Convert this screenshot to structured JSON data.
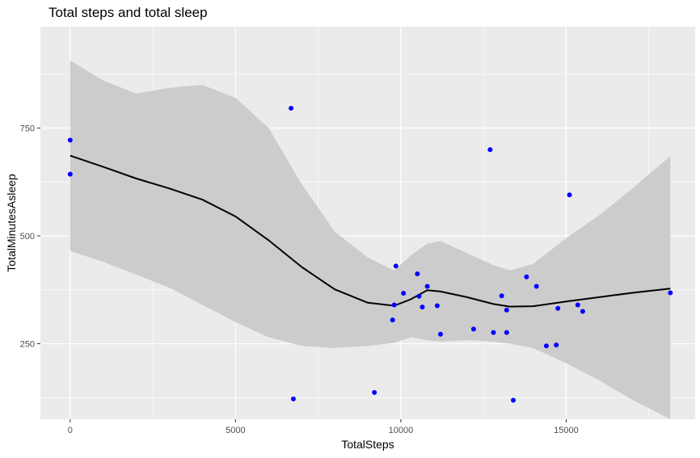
{
  "chart_data": {
    "type": "scatter",
    "title": "Total steps and total sleep",
    "xlabel": "TotalSteps",
    "ylabel": "TotalMinutesAsleep",
    "xlim": [
      -900,
      18900
    ],
    "ylim": [
      75,
      985
    ],
    "x_ticks": [
      0,
      5000,
      10000,
      15000
    ],
    "x_tick_labels": [
      "0",
      "5000",
      "10000",
      "15000"
    ],
    "y_ticks": [
      250,
      500,
      750
    ],
    "y_tick_labels": [
      "250",
      "500",
      "750"
    ],
    "grid": true,
    "point_color": "#0000ff",
    "smooth_color": "#000000",
    "band_color": "#cccccc",
    "panel_background": "#ebebeb",
    "points": [
      {
        "x": 0,
        "y": 722
      },
      {
        "x": 0,
        "y": 643
      },
      {
        "x": 6680,
        "y": 796
      },
      {
        "x": 6750,
        "y": 122
      },
      {
        "x": 9200,
        "y": 137
      },
      {
        "x": 9750,
        "y": 305
      },
      {
        "x": 9800,
        "y": 340
      },
      {
        "x": 9850,
        "y": 430
      },
      {
        "x": 10080,
        "y": 367
      },
      {
        "x": 10500,
        "y": 412
      },
      {
        "x": 10550,
        "y": 360
      },
      {
        "x": 10650,
        "y": 335
      },
      {
        "x": 10800,
        "y": 383
      },
      {
        "x": 11100,
        "y": 338
      },
      {
        "x": 11200,
        "y": 272
      },
      {
        "x": 12200,
        "y": 284
      },
      {
        "x": 12700,
        "y": 700
      },
      {
        "x": 12800,
        "y": 276
      },
      {
        "x": 13050,
        "y": 361
      },
      {
        "x": 13200,
        "y": 328
      },
      {
        "x": 13200,
        "y": 276
      },
      {
        "x": 13400,
        "y": 119
      },
      {
        "x": 13800,
        "y": 405
      },
      {
        "x": 14100,
        "y": 383
      },
      {
        "x": 14400,
        "y": 245
      },
      {
        "x": 14700,
        "y": 247
      },
      {
        "x": 14750,
        "y": 332
      },
      {
        "x": 15100,
        "y": 595
      },
      {
        "x": 15350,
        "y": 340
      },
      {
        "x": 15500,
        "y": 325
      },
      {
        "x": 18150,
        "y": 368
      }
    ],
    "smooth": {
      "x": [
        0,
        1000,
        2000,
        3000,
        4000,
        5000,
        6000,
        7000,
        8000,
        9000,
        9800,
        10300,
        10800,
        11200,
        12000,
        12800,
        13300,
        14000,
        15000,
        16000,
        17000,
        18150
      ],
      "y": [
        686,
        660,
        633,
        610,
        584,
        545,
        490,
        428,
        376,
        345,
        338,
        353,
        374,
        371,
        358,
        342,
        336,
        337,
        348,
        358,
        368,
        378
      ],
      "lower": [
        465,
        440,
        410,
        380,
        340,
        300,
        265,
        245,
        240,
        245,
        252,
        265,
        258,
        255,
        258,
        255,
        250,
        240,
        205,
        165,
        120,
        75
      ],
      "upper": [
        907,
        860,
        830,
        843,
        850,
        820,
        750,
        620,
        510,
        450,
        420,
        455,
        482,
        488,
        460,
        432,
        420,
        435,
        495,
        548,
        610,
        685
      ]
    }
  }
}
